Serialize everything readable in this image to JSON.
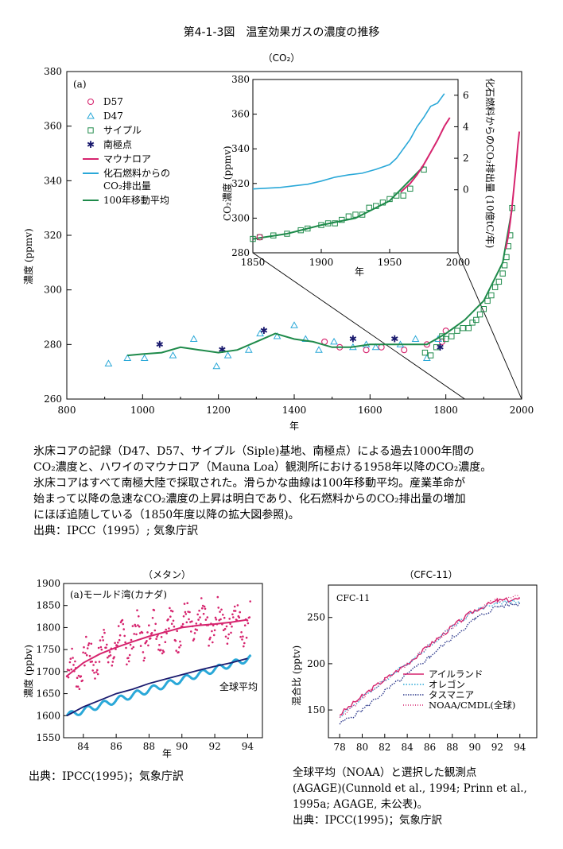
{
  "figure_title": "第4-1-3図　温室効果ガスの濃度の推移",
  "co2": {
    "subtitle": "（CO₂）",
    "panel_tag": "(a)",
    "ylabel": "濃度 (ppmv)",
    "xlabel": "年",
    "xticks": [
      "800",
      "1000",
      "1200",
      "1400",
      "1600",
      "1800",
      "2000"
    ],
    "yticks": [
      "260",
      "280",
      "300",
      "320",
      "340",
      "360",
      "380"
    ],
    "legend": [
      "D57",
      "D47",
      "サイプル",
      "南極点",
      "マウナロア",
      "化石燃料からの",
      "CO₂排出量",
      "100年移動平均"
    ],
    "inset": {
      "ylabel": "CO₂濃度 (ppmv)",
      "y2label": "化石燃料からのCO₂排出量 (10億tC/年)",
      "xlabel": "年",
      "xticks": [
        "1850",
        "1900",
        "1950",
        "2000"
      ],
      "yticks": [
        "280",
        "300",
        "320",
        "340",
        "360",
        "380"
      ],
      "y2ticks": [
        "0",
        "2",
        "4",
        "6"
      ]
    },
    "caption": "氷床コアの記録（D47、D57、サイプル（Siple)基地、南極点）による過去1000年間の\nCO₂濃度と、ハワイのマウナロア（Mauna Loa）観測所における1958年以降のCO₂濃度。\n氷床コアはすべて南極大陸で採取された。滑らかな曲線は100年移動平均。産業革命が\n始まって以降の急速なCO₂濃度の上昇は明白であり、化石燃料からのCO₂排出量の増加\nにほぼ追随している（1850年度以降の拡大図参照)。\n出典：IPCC（1995）; 気象庁訳"
  },
  "methane": {
    "subtitle": "（メタン）",
    "ylabel": "濃度 (ppbv)",
    "xlabel": "年",
    "series_label_a": "(a)モールド湾(カナダ)",
    "series_label_b": "全球平均",
    "xticks": [
      "84",
      "86",
      "88",
      "90",
      "92",
      "94"
    ],
    "yticks": [
      "1550",
      "1600",
      "1650",
      "1700",
      "1750",
      "1800",
      "1850",
      "1900"
    ],
    "source": "出典：IPCC(1995)；気象庁訳"
  },
  "cfc": {
    "subtitle": "（CFC-11）",
    "panel_label": "CFC-11",
    "ylabel": "混合比 (pptv)",
    "xticks": [
      "78",
      "80",
      "82",
      "84",
      "86",
      "88",
      "90",
      "92",
      "94"
    ],
    "yticks": [
      "150",
      "200",
      "250"
    ],
    "legend": [
      "アイルランド",
      "オレゴン",
      "タスマニア",
      "NOAA/CMDL(全球)"
    ],
    "caption": "全球平均（NOAA）と選択した観測点\n(AGAGE)(Cunnold et al., 1994; Prinn et al.,\n1995a; AGAGE, 未公表)。\n出典：IPCC(1995)；気象庁訳"
  },
  "colors": {
    "magenta": "#d6246e",
    "cyan": "#2aa8d8",
    "green": "#1e8a4a",
    "navy": "#1a1a6e",
    "darkblue": "#2e3a8c"
  },
  "chart_data": [
    {
      "type": "scatter",
      "xlim": [
        800,
        2000
      ],
      "ylim": [
        260,
        380
      ],
      "series": [
        {
          "name": "D57",
          "marker": "circle",
          "x": [
            1480,
            1520,
            1590,
            1630,
            1690,
            1750,
            1790,
            1800
          ],
          "y": [
            281,
            279,
            278,
            279,
            278,
            280,
            281,
            285
          ]
        },
        {
          "name": "D47",
          "marker": "triangle",
          "x": [
            910,
            960,
            1005,
            1080,
            1135,
            1195,
            1225,
            1280,
            1310,
            1355,
            1400,
            1430,
            1465,
            1505,
            1555,
            1590,
            1615,
            1680,
            1720,
            1750,
            1780
          ],
          "y": [
            273,
            275,
            275,
            276,
            282,
            272,
            276,
            278,
            284,
            283,
            287,
            282,
            278,
            281,
            279,
            280,
            279,
            280,
            282,
            275,
            282
          ]
        },
        {
          "name": "サイプル",
          "marker": "square",
          "x": [
            1745,
            1760,
            1775,
            1790,
            1800,
            1815,
            1830,
            1845,
            1860,
            1870,
            1880,
            1890,
            1900,
            1910,
            1920,
            1930,
            1940,
            1950,
            1955,
            1960,
            1965,
            1970,
            1975
          ],
          "y": [
            277,
            276,
            279,
            283,
            282,
            283,
            285,
            286,
            286,
            288,
            289,
            291,
            293,
            296,
            298,
            301,
            303,
            306,
            309,
            312,
            316,
            320,
            330
          ],
          "ylabel_note": ""
        },
        {
          "name": "南極点",
          "marker": "star",
          "x": [
            1045,
            1210,
            1320,
            1555,
            1665,
            1785
          ],
          "y": [
            280,
            278,
            285,
            282,
            282,
            279
          ]
        },
        {
          "name": "マウナロア",
          "x": [
            1958,
            1965,
            1970,
            1975,
            1980,
            1985,
            1990,
            1994
          ],
          "y": [
            315,
            320,
            325,
            331,
            338,
            345,
            353,
            358
          ]
        },
        {
          "name": "100年移動平均",
          "x": [
            960,
            1000,
            1050,
            1100,
            1150,
            1200,
            1250,
            1300,
            1350,
            1400,
            1450,
            1500,
            1550,
            1600,
            1650,
            1700,
            1750,
            1800,
            1850,
            1900,
            1950,
            1975
          ],
          "y": [
            276,
            276.5,
            277,
            279,
            278,
            277,
            278,
            281,
            284,
            282,
            281,
            279,
            279,
            280,
            280,
            280,
            280,
            284,
            289,
            296,
            310,
            330
          ]
        }
      ]
    },
    {
      "type": "line",
      "title": "",
      "xlim": [
        1850,
        2000
      ],
      "ylim": [
        280,
        380
      ],
      "series": [
        {
          "name": "化石燃料からのCO₂排出量",
          "axis": "right",
          "x": [
            1850,
            1870,
            1890,
            1900,
            1910,
            1920,
            1930,
            1940,
            1950,
            1955,
            1960,
            1965,
            1970,
            1975,
            1980,
            1985,
            1990
          ],
          "y": [
            0.05,
            0.15,
            0.35,
            0.55,
            0.8,
            0.95,
            1.05,
            1.3,
            1.6,
            2.0,
            2.6,
            3.2,
            4.0,
            4.6,
            5.3,
            5.5,
            6.1
          ],
          "ylim": [
            -4,
            7
          ]
        },
        {
          "name": "マウナロア",
          "x": [
            1958,
            1965,
            1970,
            1975,
            1980,
            1985,
            1990,
            1994
          ],
          "y": [
            315,
            320,
            325,
            331,
            338,
            345,
            353,
            358
          ]
        },
        {
          "name": "サイプル",
          "x": [
            1850,
            1855,
            1865,
            1875,
            1885,
            1890,
            1900,
            1905,
            1910,
            1915,
            1920,
            1925,
            1930,
            1935,
            1940,
            1945,
            1950,
            1955,
            1960,
            1965,
            1975
          ],
          "y": [
            288,
            289,
            290,
            291,
            293,
            294,
            296,
            297,
            297,
            299,
            301,
            302,
            302,
            306,
            307,
            309,
            311,
            313,
            313,
            317,
            328
          ]
        },
        {
          "name": "100年移動平均",
          "x": [
            1850,
            1875,
            1900,
            1925,
            1950,
            1975
          ],
          "y": [
            288,
            291,
            296,
            300,
            310,
            330
          ]
        }
      ]
    },
    {
      "type": "line",
      "xlim": [
        82.8,
        94.9
      ],
      "ylim": [
        1550,
        1900
      ],
      "series": [
        {
          "name": "(a)モールド湾(カナダ)",
          "x": [
            83,
            84,
            85,
            86,
            87,
            88,
            89,
            90,
            91,
            92,
            93,
            94
          ],
          "y": [
            1690,
            1720,
            1740,
            1755,
            1768,
            1780,
            1790,
            1800,
            1805,
            1808,
            1812,
            1818
          ],
          "style": "scatter+fit"
        },
        {
          "name": "全球平均",
          "x": [
            83,
            84,
            85,
            86,
            87,
            88,
            89,
            90,
            91,
            92,
            93,
            94
          ],
          "y": [
            1600,
            1620,
            1635,
            1650,
            1660,
            1673,
            1683,
            1693,
            1703,
            1712,
            1720,
            1730
          ]
        }
      ]
    },
    {
      "type": "line",
      "xlim": [
        77,
        95.5
      ],
      "ylim": [
        120,
        285
      ],
      "series": [
        {
          "name": "アイルランド",
          "x": [
            78,
            80,
            82,
            84,
            86,
            88,
            90,
            92,
            94
          ],
          "y": [
            145,
            165,
            183,
            200,
            220,
            240,
            258,
            268,
            270
          ]
        },
        {
          "name": "オレゴン",
          "x": [
            78,
            80,
            82,
            84,
            86,
            88,
            90,
            92,
            94
          ],
          "y": [
            143,
            163,
            182,
            200,
            220,
            240,
            257,
            266,
            268
          ]
        },
        {
          "name": "タスマニア",
          "x": [
            78,
            80,
            82,
            84,
            86,
            88,
            90,
            92,
            94
          ],
          "y": [
            135,
            150,
            170,
            188,
            208,
            228,
            248,
            262,
            265
          ]
        },
        {
          "name": "NOAA/CMDL(全球)",
          "x": [
            78,
            80,
            82,
            84,
            86,
            88,
            90,
            92,
            94
          ],
          "y": [
            142,
            163,
            182,
            200,
            220,
            240,
            258,
            269,
            272
          ]
        }
      ]
    }
  ]
}
